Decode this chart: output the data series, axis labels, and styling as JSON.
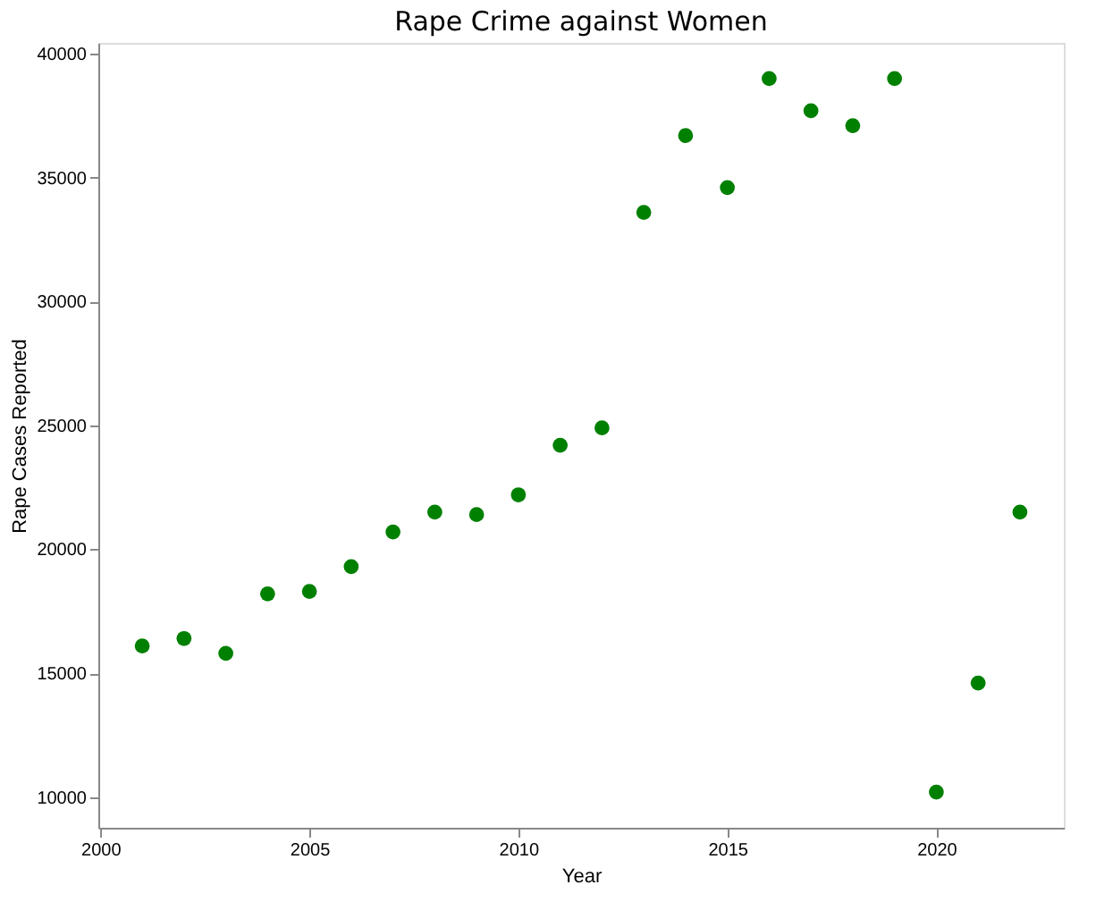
{
  "chart_data": {
    "type": "scatter",
    "title": "Rape Crime against Women",
    "xlabel": "Year",
    "ylabel": "Rape Cases Reported",
    "x": [
      2001,
      2002,
      2003,
      2004,
      2005,
      2006,
      2007,
      2008,
      2009,
      2010,
      2011,
      2012,
      2013,
      2014,
      2015,
      2016,
      2017,
      2018,
      2019,
      2020,
      2021,
      2022
    ],
    "series": [
      {
        "color": "#008000",
        "values": [
          16100,
          16400,
          15800,
          18200,
          18300,
          19300,
          20700,
          21500,
          21400,
          22200,
          24200,
          24900,
          33600,
          36700,
          34600,
          39000,
          37700,
          37100,
          39000,
          10200,
          14600,
          21500
        ]
      }
    ],
    "xlim": [
      1999.95,
      2023.05
    ],
    "xticks": [
      2000,
      2005,
      2010,
      2015,
      2020
    ],
    "ylim": [
      8760,
      40440
    ],
    "yticks": [
      10000,
      15000,
      20000,
      25000,
      30000,
      35000,
      40000
    ],
    "grid": false,
    "marker": "circle"
  }
}
